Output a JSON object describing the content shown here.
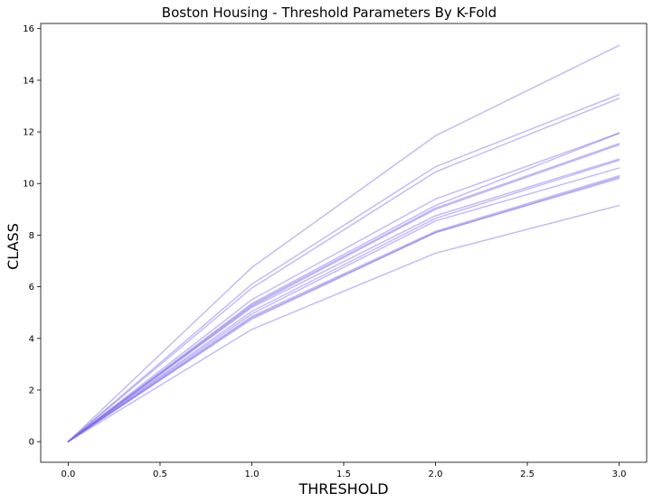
{
  "chart_data": {
    "type": "line",
    "title": "Boston Housing - Threshold Parameters By K-Fold",
    "xlabel": "THRESHOLD",
    "ylabel": "CLASS",
    "x": [
      0,
      1,
      2,
      3
    ],
    "xlim": [
      -0.15,
      3.15
    ],
    "ylim": [
      -0.8,
      16.2
    ],
    "xticks": [
      0.0,
      0.5,
      1.0,
      1.5,
      2.0,
      2.5,
      3.0
    ],
    "xtick_labels": [
      "0.0",
      "0.5",
      "1.0",
      "1.5",
      "2.0",
      "2.5",
      "3.0"
    ],
    "yticks": [
      0,
      2,
      4,
      6,
      8,
      10,
      12,
      14,
      16
    ],
    "ytick_labels": [
      "0",
      "2",
      "4",
      "6",
      "8",
      "10",
      "12",
      "14",
      "16"
    ],
    "grid": false,
    "line_color": "#7b68ee",
    "line_opacity": 0.45,
    "series": [
      {
        "values": [
          0,
          6.75,
          11.85,
          15.35
        ]
      },
      {
        "values": [
          0,
          6.1,
          10.65,
          13.45
        ]
      },
      {
        "values": [
          0,
          5.95,
          10.45,
          13.3
        ]
      },
      {
        "values": [
          0,
          5.5,
          9.4,
          11.95
        ]
      },
      {
        "values": [
          0,
          5.35,
          9.15,
          11.95
        ]
      },
      {
        "values": [
          0,
          5.3,
          9.05,
          11.55
        ]
      },
      {
        "values": [
          0,
          5.25,
          9.0,
          11.5
        ]
      },
      {
        "values": [
          0,
          5.2,
          8.75,
          10.95
        ]
      },
      {
        "values": [
          0,
          5.05,
          8.65,
          10.9
        ]
      },
      {
        "values": [
          0,
          4.95,
          8.55,
          10.6
        ]
      },
      {
        "values": [
          0,
          4.85,
          8.15,
          10.3
        ]
      },
      {
        "values": [
          0,
          4.8,
          8.1,
          10.2
        ]
      },
      {
        "values": [
          0,
          4.75,
          8.1,
          10.25
        ]
      },
      {
        "values": [
          0,
          4.35,
          7.3,
          9.15
        ]
      }
    ]
  }
}
